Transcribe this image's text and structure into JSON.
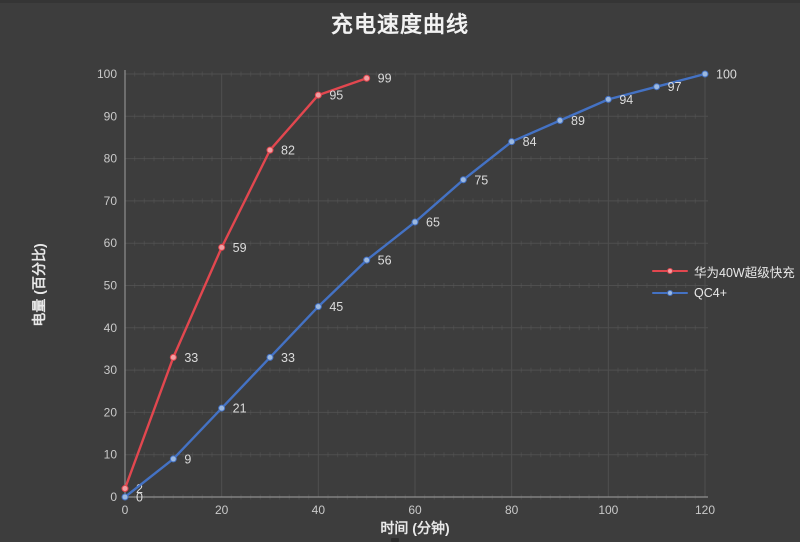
{
  "page": {
    "background": "#3d3d3d",
    "title": "充电速度曲线"
  },
  "chart_data": {
    "type": "line",
    "title": "充电速度曲线",
    "xlabel": "时间 (分钟)",
    "ylabel": "电量 (百分比)",
    "xlim": [
      0,
      120
    ],
    "ylim": [
      0,
      100
    ],
    "x_ticks": [
      0,
      20,
      40,
      60,
      80,
      100,
      120
    ],
    "y_ticks": [
      0,
      10,
      20,
      30,
      40,
      50,
      60,
      70,
      80,
      90,
      100
    ],
    "grid": true,
    "data_labels": true,
    "legend_position": "right",
    "series": [
      {
        "name": "华为40W超级快充",
        "color": "#e2474f",
        "marker_fill": "#f09fa3",
        "x": [
          0,
          10,
          20,
          30,
          40,
          50
        ],
        "values": [
          2,
          33,
          59,
          82,
          95,
          99
        ]
      },
      {
        "name": "QC4+",
        "color": "#4472c4",
        "marker_fill": "#9cb9e0",
        "x": [
          0,
          10,
          20,
          30,
          40,
          50,
          60,
          70,
          80,
          90,
          100,
          110,
          120
        ],
        "values": [
          0,
          9,
          21,
          33,
          45,
          56,
          65,
          75,
          84,
          89,
          94,
          97,
          100
        ]
      }
    ]
  },
  "style": {
    "grid_color": "#4f4f4f",
    "minor_tick_color": "#555555",
    "axis_color": "#8f8f8f",
    "tick_label_color": "#c9c9c9",
    "data_label_color": "#dcdcdc",
    "title_color": "#f2f2f2"
  }
}
